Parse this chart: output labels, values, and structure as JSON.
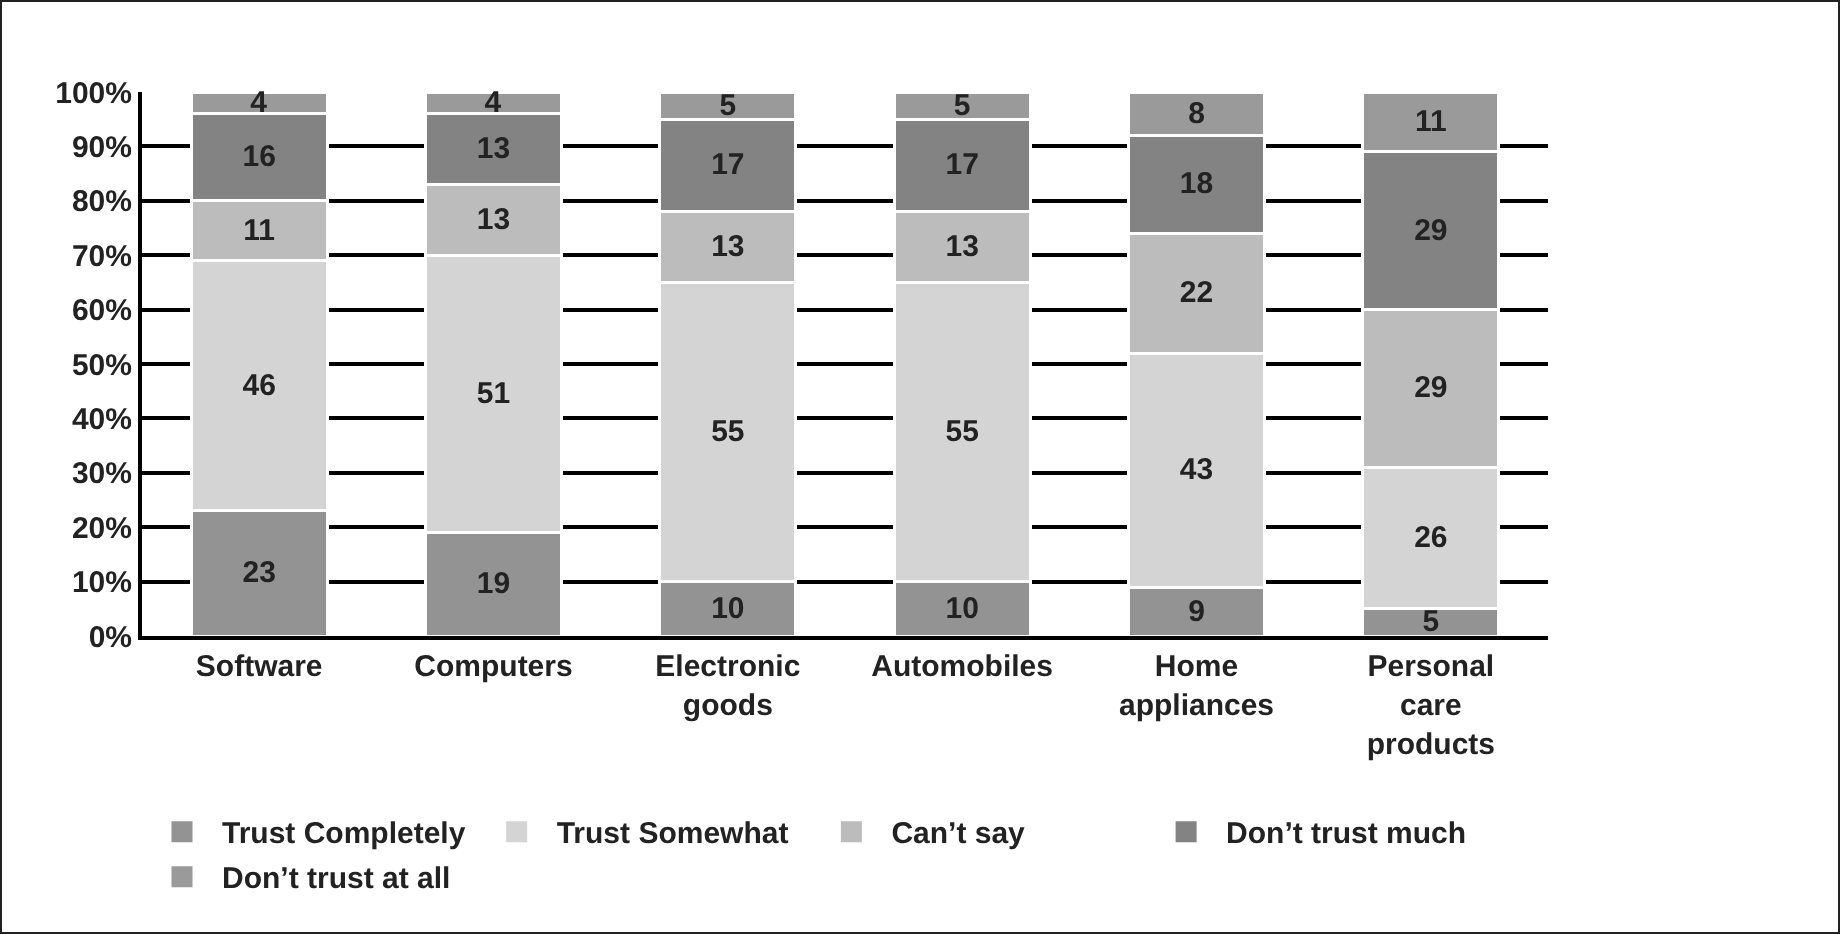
{
  "chart_data": {
    "type": "bar",
    "stacked": true,
    "categories": [
      "Software",
      "Computers",
      "Electronic goods",
      "Automobiles",
      "Home appliances",
      "Personal care products"
    ],
    "series": [
      {
        "name": "Trust Completely",
        "color": "#939393",
        "values": [
          23,
          19,
          10,
          10,
          9,
          5
        ]
      },
      {
        "name": "Trust Somewhat",
        "color": "#d4d4d4",
        "values": [
          46,
          51,
          55,
          55,
          43,
          26
        ]
      },
      {
        "name": "Can’t say",
        "color": "#bcbcbc",
        "values": [
          11,
          13,
          13,
          13,
          22,
          29
        ]
      },
      {
        "name": "Don’t trust much",
        "color": "#838383",
        "values": [
          16,
          13,
          17,
          17,
          18,
          29
        ]
      },
      {
        "name": "Don’t trust at all",
        "color": "#9a9a9a",
        "values": [
          4,
          4,
          5,
          5,
          8,
          11
        ]
      }
    ],
    "ylim": [
      0,
      100
    ],
    "yticks": [
      {
        "value": 0,
        "label": "0%"
      },
      {
        "value": 10,
        "label": "10%"
      },
      {
        "value": 20,
        "label": "20%"
      },
      {
        "value": 30,
        "label": "30%"
      },
      {
        "value": 40,
        "label": "40%"
      },
      {
        "value": 50,
        "label": "50%"
      },
      {
        "value": 60,
        "label": "60%"
      },
      {
        "value": 70,
        "label": "70%"
      },
      {
        "value": 80,
        "label": "80%"
      },
      {
        "value": 90,
        "label": "90%"
      },
      {
        "value": 100,
        "label": "100%"
      }
    ],
    "grid": "y",
    "legend": "bottom",
    "data_labels": true
  }
}
